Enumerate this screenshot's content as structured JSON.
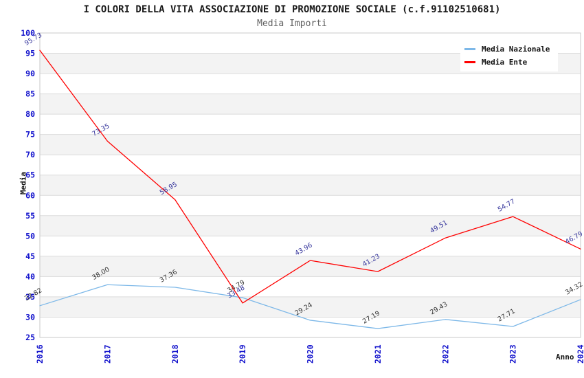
{
  "chart_data": {
    "type": "line",
    "title": "I COLORI DELLA VITA ASSOCIAZIONE DI PROMOZIONE SOCIALE (c.f.91102510681)",
    "subtitle": "Media Importi",
    "xlabel": "Anno",
    "ylabel": "Media",
    "x": [
      2016,
      2017,
      2018,
      2019,
      2020,
      2021,
      2022,
      2023,
      2024
    ],
    "series": [
      {
        "name": "Media Nazionale",
        "color": "#7db8e8",
        "label_color": "#333333",
        "values": [
          32.82,
          38.0,
          37.36,
          34.79,
          29.24,
          27.19,
          29.43,
          27.71,
          34.32
        ]
      },
      {
        "name": "Media Ente",
        "color": "#ff0000",
        "label_color": "#33339b",
        "values": [
          95.73,
          73.35,
          58.95,
          33.48,
          43.96,
          41.23,
          49.51,
          54.77,
          46.79
        ]
      }
    ],
    "ylim": [
      25,
      100
    ],
    "ytick_step": 5,
    "grid": true,
    "legend_position": "top-right",
    "colors": {
      "axis_tick_label": "#1111cc",
      "band": "#f3f3f3",
      "gridline": "#dcdcdc",
      "frame": "#c8c8c8"
    }
  }
}
